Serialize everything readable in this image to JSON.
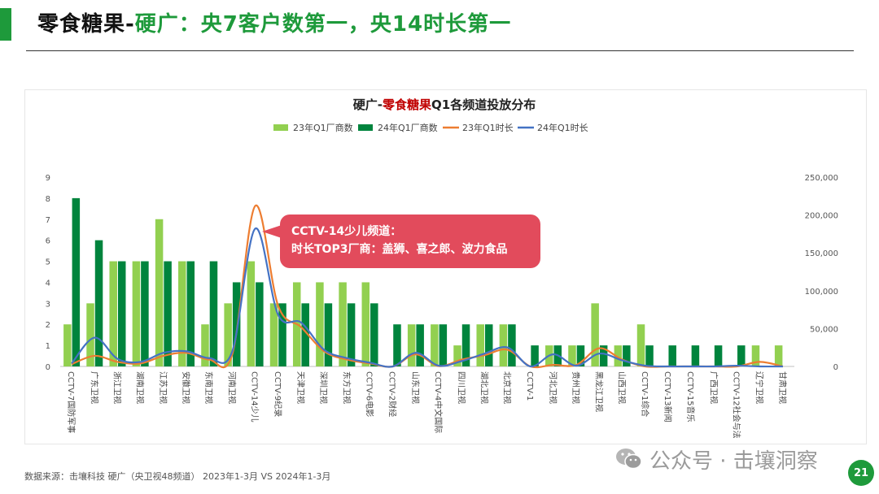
{
  "header": {
    "title_part1": "零食糖果-",
    "title_part2": "硬广：央7客户数第一，央14时长第一",
    "page_number": "21"
  },
  "footer": {
    "source": "数据来源：击壤科技 硬广（央卫视48频道） 2023年1-3月 VS 2024年1-3月",
    "watermark": "公众号 · 击壤洞察"
  },
  "callout": {
    "line1": "CCTV-14少儿频道：",
    "line2": "时长TOP3厂商：盖狮、喜之郎、波力食品"
  },
  "colors": {
    "bar23": "#92d050",
    "bar24": "#00843d",
    "line23": "#ed7d31",
    "line24": "#4472c4",
    "accent": "#1e9a3b",
    "callout": "#e24b5c",
    "highlight": "#c00000"
  },
  "chart_data": {
    "type": "bar",
    "title_prefix": "硬广-",
    "title_highlight": "零食糖果",
    "title_suffix": "Q1各频道投放分布",
    "legend_position": "top",
    "categories": [
      "CCTV-7国防军事",
      "广东卫视",
      "浙江卫视",
      "湖南卫视",
      "江苏卫视",
      "安徽卫视",
      "东南卫视",
      "河南卫视",
      "CCTV-14少儿",
      "CCTV-9纪录",
      "天津卫视",
      "深圳卫视",
      "东方卫视",
      "CCTV-6电影",
      "CCTV-2财经",
      "山东卫视",
      "CCTV-4中文国际",
      "四川卫视",
      "湖北卫视",
      "北京卫视",
      "CCTV-1",
      "河北卫视",
      "贵州卫视",
      "黑龙江卫视",
      "山西卫视",
      "CCTV-1综合",
      "CCTV-13新闻",
      "CCTV-15音乐",
      "广西卫视",
      "CCTV-12社会与法",
      "辽宁卫视",
      "甘肃卫视"
    ],
    "series": [
      {
        "name": "23年Q1厂商数",
        "kind": "bar",
        "axis": "left",
        "values": [
          2,
          3,
          5,
          5,
          7,
          5,
          2,
          3,
          5,
          3,
          4,
          4,
          4,
          4,
          0,
          2,
          2,
          1,
          2,
          2,
          0,
          1,
          1,
          3,
          1,
          2,
          0,
          0,
          0,
          0,
          1,
          1
        ]
      },
      {
        "name": "24年Q1厂商数",
        "kind": "bar",
        "axis": "left",
        "values": [
          8,
          6,
          5,
          5,
          5,
          5,
          5,
          4,
          4,
          3,
          3,
          3,
          3,
          3,
          2,
          2,
          2,
          2,
          2,
          2,
          1,
          1,
          1,
          1,
          1,
          1,
          1,
          1,
          1,
          1,
          0,
          0
        ]
      },
      {
        "name": "23年Q1时长",
        "kind": "line",
        "axis": "right",
        "values": [
          3000,
          14000,
          6000,
          4000,
          14000,
          18000,
          9000,
          16000,
          212000,
          80000,
          52000,
          20000,
          9000,
          4000,
          0,
          16000,
          500,
          9000,
          15000,
          22000,
          0,
          2000,
          2000,
          24000,
          9000,
          0,
          0,
          0,
          0,
          0,
          6000,
          0
        ]
      },
      {
        "name": "24年Q1时长",
        "kind": "line",
        "axis": "right",
        "values": [
          4000,
          38000,
          10000,
          6000,
          18000,
          20000,
          11000,
          20000,
          182000,
          68000,
          58000,
          22000,
          11000,
          5000,
          0,
          18000,
          1000,
          7000,
          17000,
          25000,
          0,
          16000,
          1000,
          17000,
          8000,
          1000,
          0,
          0,
          0,
          1000,
          0,
          0
        ]
      }
    ],
    "ylim_left": [
      0,
      9
    ],
    "yticks_left": [
      "0",
      "1",
      "2",
      "3",
      "4",
      "5",
      "6",
      "7",
      "8",
      "9"
    ],
    "ylim_right": [
      0,
      250000
    ],
    "yticks_right": [
      "0",
      "50,000",
      "100,000",
      "150,000",
      "200,000",
      "250,000"
    ],
    "grid": false
  }
}
